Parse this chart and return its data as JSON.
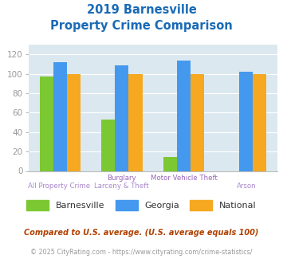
{
  "title_line1": "2019 Barnesville",
  "title_line2": "Property Crime Comparison",
  "barnesville": [
    97,
    53,
    14,
    0
  ],
  "georgia": [
    112,
    109,
    114,
    102
  ],
  "national": [
    100,
    100,
    100,
    100
  ],
  "bar_color_barnesville": "#7cc832",
  "bar_color_georgia": "#4499ee",
  "bar_color_national": "#f5a820",
  "ylim": [
    0,
    130
  ],
  "yticks": [
    0,
    20,
    40,
    60,
    80,
    100,
    120
  ],
  "background_color": "#dce8f0",
  "legend_labels": [
    "Barnesville",
    "Georgia",
    "National"
  ],
  "footnote1": "Compared to U.S. average. (U.S. average equals 100)",
  "footnote2": "© 2025 CityRating.com - https://www.cityrating.com/crime-statistics/",
  "title_color": "#1a6ab5",
  "footnote1_color": "#b04000",
  "footnote2_color": "#999999",
  "url_color": "#4499ee",
  "xtick_color_top": "#9966bb",
  "xtick_color_bot": "#aa88cc",
  "ytick_color": "#999999",
  "top_labels": [
    "",
    "Burglary",
    "Motor Vehicle Theft",
    ""
  ],
  "bot_labels": [
    "All Property Crime",
    "Larceny & Theft",
    "",
    "Arson"
  ]
}
